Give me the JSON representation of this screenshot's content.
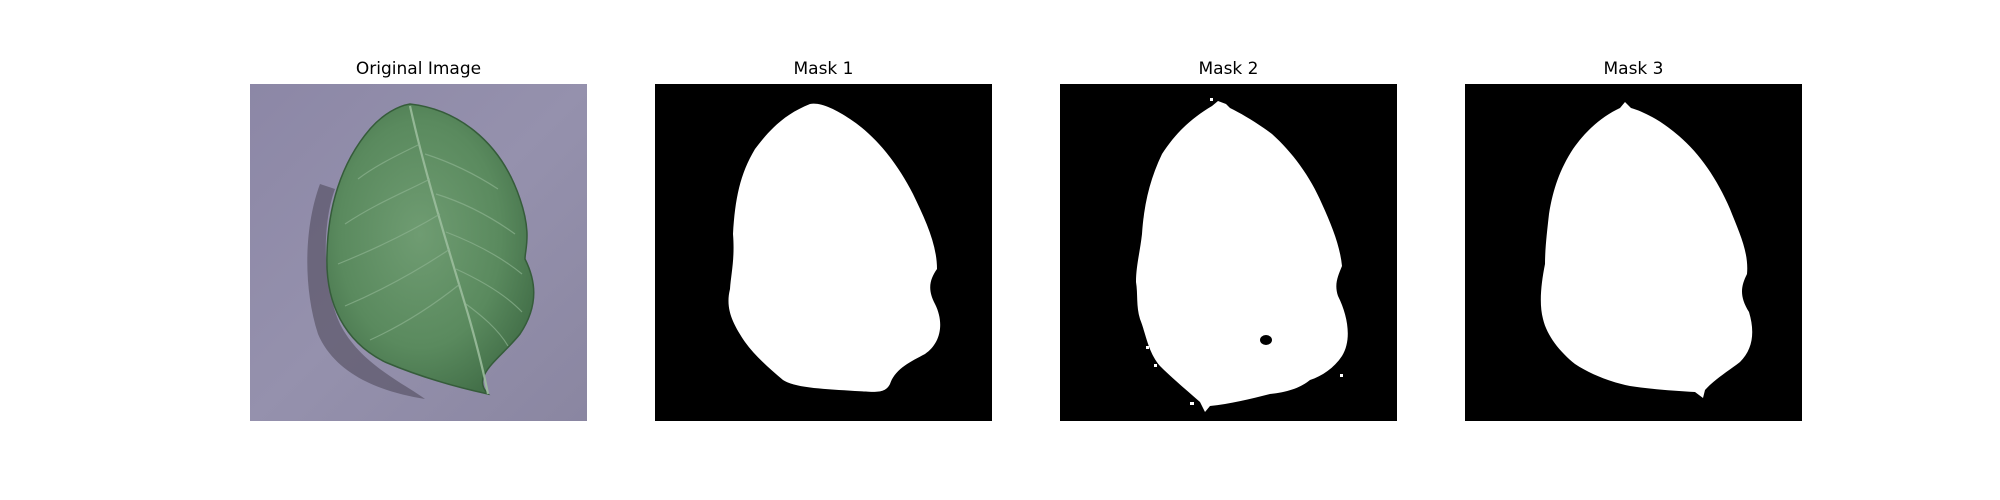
{
  "figure": {
    "panels": [
      {
        "id": "original",
        "title": "Original Image",
        "kind": "photo"
      },
      {
        "id": "mask1",
        "title": "Mask 1",
        "kind": "binary-mask"
      },
      {
        "id": "mask2",
        "title": "Mask 2",
        "kind": "binary-mask"
      },
      {
        "id": "mask3",
        "title": "Mask 3",
        "kind": "binary-mask"
      }
    ]
  },
  "colors": {
    "background": "#ffffff",
    "mask_background": "#000000",
    "mask_foreground": "#ffffff",
    "leaf_green": "#5a8a5e",
    "surface_lavender": "#8f8aa6"
  }
}
